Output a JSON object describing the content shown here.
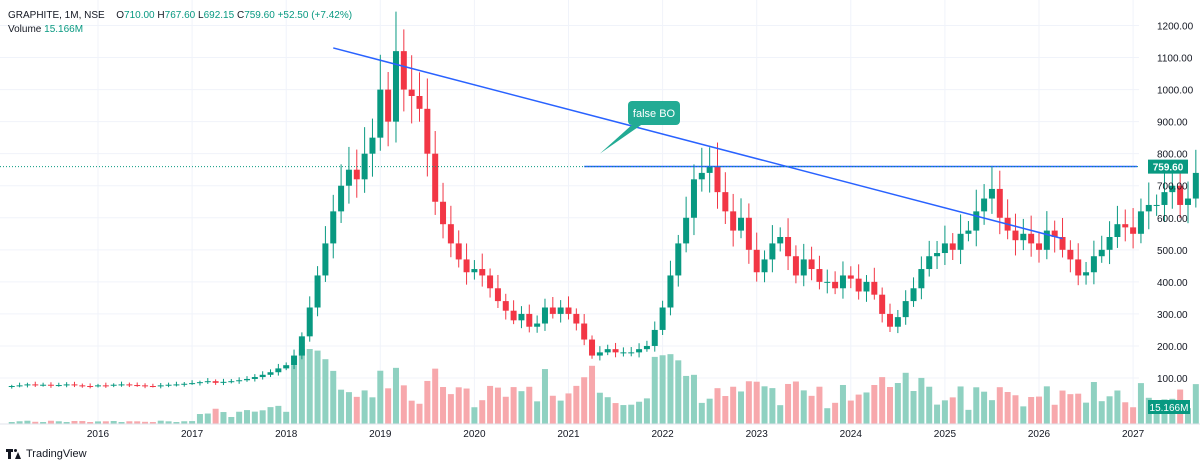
{
  "header": {
    "symbol": "GRAPHITE, 1M, NSE",
    "open_label": "O",
    "open": "710.00",
    "high_label": "H",
    "high": "767.60",
    "low_label": "L",
    "low": "692.15",
    "close_label": "C",
    "close": "759.60",
    "change": "+52.50 (+7.42%)",
    "volume_label": "Volume",
    "volume": "15.166M"
  },
  "branding": {
    "name": "TradingView"
  },
  "colors": {
    "up": "#089981",
    "down": "#f23645",
    "vol_up": "#8fd1c1",
    "vol_down": "#f7a8ac",
    "trendline": "#2962ff",
    "callout": "#22ab94"
  },
  "chart_data": {
    "type": "candlestick",
    "interval": "1M",
    "start": "2015-02",
    "ylim": [
      50,
      1250
    ],
    "y_scale": "linear",
    "y_ticks": [
      "100.00",
      "200.00",
      "300.00",
      "400.00",
      "500.00",
      "600.00",
      "700.00",
      "800.00",
      "900.00",
      "1000.00",
      "1100.00",
      "1200.00"
    ],
    "x_ticks": [
      "2016",
      "2017",
      "2018",
      "2019",
      "2020",
      "2021",
      "2022",
      "2023",
      "2024",
      "2025",
      "2026",
      "2027"
    ],
    "last_price_label": "759.60",
    "volume_label": "15.166M",
    "annotation": {
      "text": "false BO",
      "date": "2021-05",
      "price": 800
    },
    "trendline": {
      "from": {
        "date": "2018-07",
        "price": 1130
      },
      "to": {
        "date": "2026-04",
        "price": 535
      }
    },
    "resistance": {
      "from": {
        "date": "2021-03",
        "price": 760
      },
      "to": {
        "date": "2026-07",
        "price": 760
      }
    },
    "closes": [
      75,
      77,
      80,
      78,
      79,
      76,
      78,
      80,
      77,
      75,
      74,
      77,
      76,
      79,
      80,
      78,
      77,
      75,
      74,
      77,
      79,
      80,
      82,
      84,
      87,
      90,
      85,
      88,
      90,
      93,
      97,
      103,
      110,
      118,
      130,
      140,
      170,
      230,
      320,
      420,
      520,
      620,
      700,
      750,
      720,
      800,
      850,
      1000,
      900,
      1120,
      1000,
      980,
      940,
      800,
      650,
      580,
      520,
      470,
      430,
      440,
      420,
      380,
      340,
      310,
      280,
      300,
      260,
      270,
      320,
      300,
      320,
      300,
      270,
      220,
      170,
      180,
      190,
      180,
      180,
      180,
      190,
      200,
      250,
      320,
      420,
      520,
      600,
      720,
      740,
      760,
      680,
      620,
      560,
      600,
      500,
      430,
      470,
      520,
      540,
      480,
      420,
      470,
      440,
      400,
      400,
      380,
      420,
      410,
      370,
      400,
      360,
      300,
      260,
      290,
      340,
      380,
      440,
      480,
      490,
      520,
      500,
      550,
      560,
      620,
      660,
      690,
      600,
      560,
      530,
      550,
      520,
      500,
      560,
      540,
      500,
      470,
      420,
      430,
      480,
      500,
      540,
      580,
      570,
      550,
      620,
      640,
      640,
      680,
      700,
      640,
      660,
      740,
      759.6
    ]
  }
}
